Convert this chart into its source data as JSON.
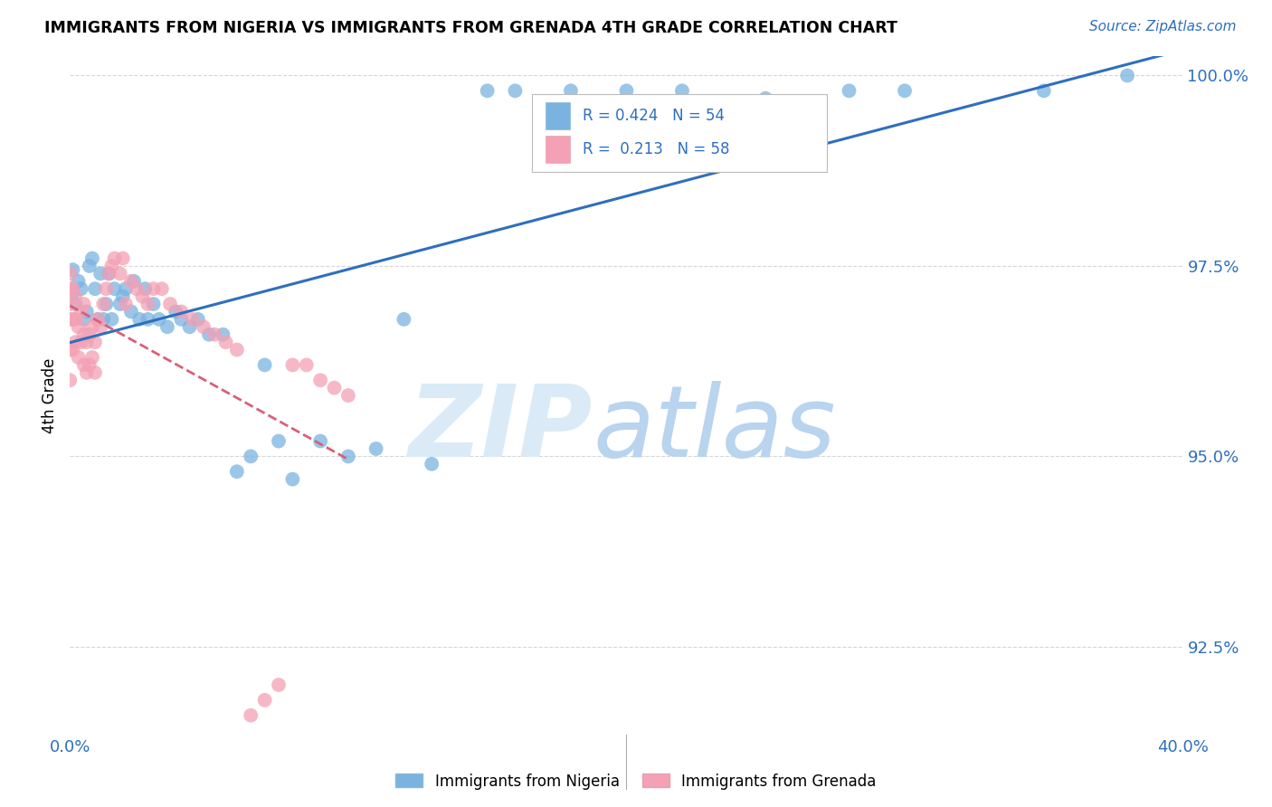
{
  "title": "IMMIGRANTS FROM NIGERIA VS IMMIGRANTS FROM GRENADA 4TH GRADE CORRELATION CHART",
  "source": "Source: ZipAtlas.com",
  "ylabel": "4th Grade",
  "xlim": [
    0.0,
    0.4
  ],
  "ylim": [
    0.9135,
    1.0025
  ],
  "xticks": [
    0.0,
    0.05,
    0.1,
    0.15,
    0.2,
    0.25,
    0.3,
    0.35,
    0.4
  ],
  "yticks": [
    0.925,
    0.95,
    0.975,
    1.0
  ],
  "yticklabels": [
    "92.5%",
    "95.0%",
    "97.5%",
    "100.0%"
  ],
  "nigeria_color": "#7ab3e0",
  "grenada_color": "#f4a0b5",
  "nigeria_R": 0.424,
  "nigeria_N": 54,
  "grenada_R": 0.213,
  "grenada_N": 58,
  "legend_label_nigeria": "Immigrants from Nigeria",
  "legend_label_grenada": "Immigrants from Grenada",
  "nigeria_x": [
    0.001,
    0.001,
    0.002,
    0.003,
    0.004,
    0.005,
    0.006,
    0.007,
    0.008,
    0.009,
    0.01,
    0.011,
    0.012,
    0.013,
    0.014,
    0.015,
    0.016,
    0.018,
    0.019,
    0.02,
    0.022,
    0.023,
    0.025,
    0.027,
    0.028,
    0.03,
    0.032,
    0.035,
    0.038,
    0.04,
    0.043,
    0.046,
    0.05,
    0.055,
    0.06,
    0.065,
    0.07,
    0.075,
    0.08,
    0.09,
    0.1,
    0.11,
    0.12,
    0.13,
    0.15,
    0.16,
    0.18,
    0.2,
    0.22,
    0.25,
    0.28,
    0.3,
    0.35,
    0.38
  ],
  "nigeria_y": [
    0.9715,
    0.9745,
    0.97,
    0.973,
    0.972,
    0.968,
    0.969,
    0.975,
    0.976,
    0.972,
    0.968,
    0.974,
    0.968,
    0.97,
    0.974,
    0.968,
    0.972,
    0.97,
    0.971,
    0.972,
    0.969,
    0.973,
    0.968,
    0.972,
    0.968,
    0.97,
    0.968,
    0.967,
    0.969,
    0.968,
    0.967,
    0.968,
    0.966,
    0.966,
    0.948,
    0.95,
    0.962,
    0.952,
    0.947,
    0.952,
    0.95,
    0.951,
    0.968,
    0.949,
    0.998,
    0.998,
    0.998,
    0.998,
    0.998,
    0.997,
    0.998,
    0.998,
    0.998,
    1.0
  ],
  "grenada_x": [
    0.0,
    0.0,
    0.0,
    0.0,
    0.0,
    0.0,
    0.001,
    0.001,
    0.001,
    0.002,
    0.002,
    0.002,
    0.003,
    0.003,
    0.004,
    0.004,
    0.005,
    0.005,
    0.005,
    0.006,
    0.006,
    0.007,
    0.007,
    0.008,
    0.008,
    0.009,
    0.009,
    0.01,
    0.011,
    0.012,
    0.013,
    0.014,
    0.015,
    0.016,
    0.018,
    0.019,
    0.02,
    0.022,
    0.024,
    0.026,
    0.028,
    0.03,
    0.033,
    0.036,
    0.04,
    0.044,
    0.048,
    0.052,
    0.056,
    0.06,
    0.065,
    0.07,
    0.075,
    0.08,
    0.085,
    0.09,
    0.095,
    0.1
  ],
  "grenada_y": [
    0.96,
    0.964,
    0.968,
    0.97,
    0.972,
    0.974,
    0.964,
    0.968,
    0.972,
    0.965,
    0.968,
    0.971,
    0.963,
    0.967,
    0.965,
    0.969,
    0.962,
    0.966,
    0.97,
    0.961,
    0.965,
    0.962,
    0.966,
    0.963,
    0.967,
    0.961,
    0.965,
    0.968,
    0.967,
    0.97,
    0.972,
    0.974,
    0.975,
    0.976,
    0.974,
    0.976,
    0.97,
    0.973,
    0.972,
    0.971,
    0.97,
    0.972,
    0.972,
    0.97,
    0.969,
    0.968,
    0.967,
    0.966,
    0.965,
    0.964,
    0.916,
    0.918,
    0.92,
    0.962,
    0.962,
    0.96,
    0.959,
    0.958
  ]
}
